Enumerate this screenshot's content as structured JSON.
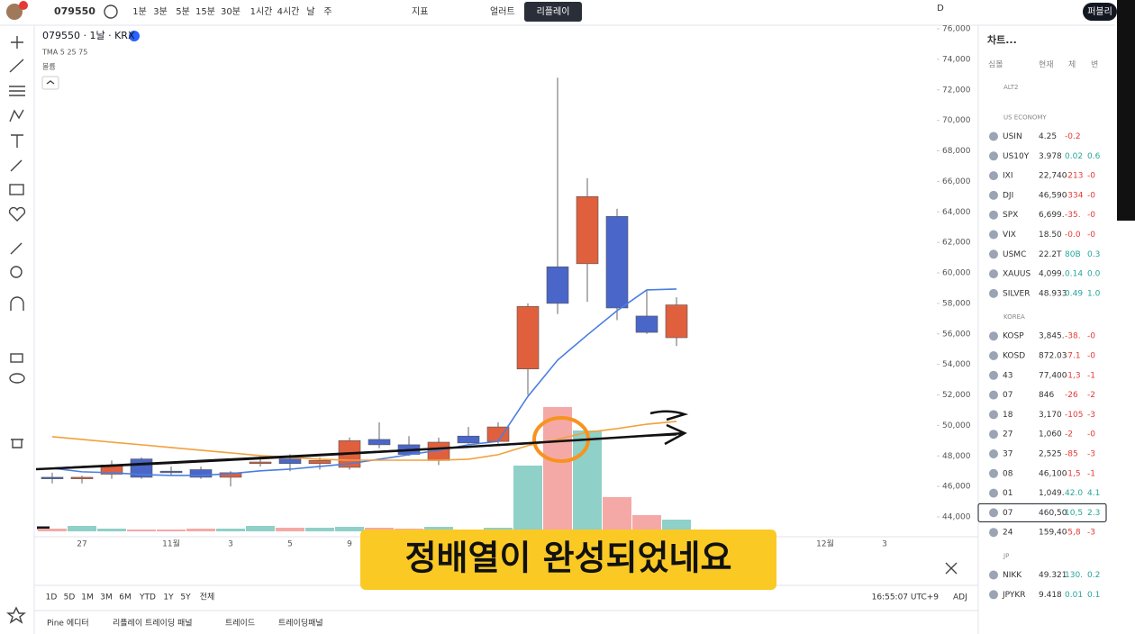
{
  "toolbar": {
    "symbol": "079550",
    "intervals": [
      "1분",
      "3분",
      "5분",
      "15분",
      "30분",
      "1시간",
      "4시간",
      "날",
      "주"
    ],
    "indicators": "지표",
    "alerts": "얼러트",
    "replay": "리플레이",
    "period": "D",
    "publish": "퍼블리"
  },
  "chart_data": {
    "type": "candlestick",
    "title": "079550 · 1날 · KRX",
    "indicator": "TMA 5 25 75",
    "volume_label": "볼륨",
    "categories": [
      null,
      "27",
      null,
      null,
      "11월",
      null,
      "3",
      null,
      "5",
      null,
      "9",
      null,
      null,
      null,
      null,
      null,
      null,
      null,
      null,
      null,
      null,
      null,
      null,
      null,
      null,
      null,
      "12월",
      null,
      "3"
    ],
    "open": [
      46600,
      46500,
      46800,
      47800,
      47000,
      47100,
      46600,
      47500,
      47800,
      47500,
      47250,
      49080,
      48730,
      47700,
      49300,
      48950,
      53700,
      60400,
      60600,
      63700,
      57170,
      55750,
      null,
      null,
      null,
      null,
      null,
      null,
      null
    ],
    "high": [
      46900,
      46700,
      47700,
      47900,
      47300,
      47300,
      47000,
      48000,
      48100,
      47900,
      49200,
      50200,
      49300,
      49200,
      49900,
      50200,
      58000,
      72800,
      66200,
      64200,
      58900,
      58400,
      null,
      null,
      null,
      null,
      null,
      null,
      null
    ],
    "low": [
      46200,
      46200,
      46500,
      46500,
      46700,
      46500,
      46000,
      47300,
      47000,
      47100,
      47100,
      48500,
      48000,
      47400,
      48800,
      48800,
      52000,
      57300,
      58100,
      56900,
      56000,
      55200,
      null,
      null,
      null,
      null,
      null,
      null,
      null
    ],
    "close": [
      46500,
      46600,
      47400,
      46600,
      46900,
      46600,
      46900,
      47600,
      47500,
      47700,
      49000,
      48730,
      48100,
      48900,
      48850,
      49900,
      57800,
      58000,
      65000,
      57700,
      56100,
      57900,
      null,
      null,
      null,
      null,
      null,
      null,
      null
    ],
    "volume": [
      30,
      60,
      30,
      20,
      20,
      30,
      30,
      60,
      40,
      40,
      50,
      40,
      30,
      50,
      20,
      40,
      730,
      1380,
      1120,
      380,
      180,
      130,
      null,
      null,
      null,
      null,
      null,
      null,
      null
    ],
    "volume_lim": [
      0,
      1500
    ],
    "up_color": "#e0603e",
    "down_color": "#4a66c8",
    "volume_up_color": "#8fd0c8",
    "volume_down_color": "#f5a9a6",
    "ma": [
      {
        "color": "#4a7ee0",
        "values": [
          47190,
          46960,
          46900,
          46780,
          46720,
          46720,
          46840,
          47020,
          47130,
          47310,
          47490,
          47780,
          48080,
          48370,
          48730,
          48960,
          51900,
          54280,
          55930,
          57520,
          58880,
          58940,
          null,
          null,
          null,
          null,
          null,
          null,
          null
        ]
      },
      {
        "color": "#f2a03a",
        "values": [
          49260,
          49080,
          48900,
          48730,
          48550,
          48370,
          48200,
          48020,
          47900,
          47780,
          47720,
          47720,
          47720,
          47720,
          47780,
          48080,
          48670,
          49080,
          49550,
          49790,
          50080,
          50260,
          null,
          null,
          null,
          null,
          null,
          null,
          null
        ]
      },
      {
        "color": "#111111",
        "values": [
          47190,
          47300,
          47400,
          47500,
          47600,
          47700,
          47800,
          47900,
          48000,
          48100,
          48200,
          48300,
          48400,
          48500,
          48600,
          48700,
          48800,
          48950,
          49100,
          49200,
          49300,
          49380,
          null,
          null,
          null,
          null,
          null,
          null,
          null
        ]
      }
    ],
    "ylim": [
      44000,
      76000
    ],
    "yticks": [
      {
        "value": 44000,
        "label": "44,000"
      },
      {
        "value": 46000,
        "label": "46,000"
      },
      {
        "value": 48000,
        "label": "48,000"
      },
      {
        "value": 50000,
        "label": "50,000"
      },
      {
        "value": 52000,
        "label": "52,000"
      },
      {
        "value": 54000,
        "label": "54,000"
      },
      {
        "value": 56000,
        "label": "56,000"
      },
      {
        "value": 58000,
        "label": "58,000"
      },
      {
        "value": 60000,
        "label": "60,000"
      },
      {
        "value": 62000,
        "label": "62,000"
      },
      {
        "value": 64000,
        "label": "64,000"
      },
      {
        "value": 66000,
        "label": "66,000"
      },
      {
        "value": 68000,
        "label": "68,000"
      },
      {
        "value": 70000,
        "label": "70,000"
      },
      {
        "value": 72000,
        "label": "72,000"
      },
      {
        "value": 74000,
        "label": "74,000"
      },
      {
        "value": 76000,
        "label": "76,000"
      }
    ],
    "grid": false
  },
  "caption": "정배열이 완성되었네요",
  "timeframes": [
    "1D",
    "5D",
    "1M",
    "3M",
    "6M",
    "YTD",
    "1Y",
    "5Y",
    "전체"
  ],
  "clock": "16:55:07 UTC+9",
  "adjust": "ADJ",
  "bottom_tabs": [
    "Pine 에디터",
    "리플레이 트레이딩 패널",
    "트레이드",
    "트레이딩패널"
  ],
  "watchlist": {
    "title": "차트...",
    "columns": [
      "심볼",
      "현재",
      "체",
      "변"
    ],
    "sections": [
      {
        "title": "ALT2",
        "rows": []
      },
      {
        "title": "US ECONOMY",
        "rows": [
          {
            "symbol": "USIN",
            "price": "4.25",
            "change": "-0.2",
            "pct": ""
          },
          {
            "symbol": "US10Y",
            "price": "3.978",
            "change": "0.02",
            "pct": "0.6"
          },
          {
            "symbol": "IXI",
            "price": "22,740",
            "change": "-213",
            "pct": "-0"
          },
          {
            "symbol": "DJI",
            "price": "46,590",
            "change": "-334",
            "pct": "-0"
          },
          {
            "symbol": "SPX",
            "price": "6,699.",
            "change": "-35.",
            "pct": "-0"
          },
          {
            "symbol": "VIX",
            "price": "18.50",
            "change": "-0.0",
            "pct": "-0"
          },
          {
            "symbol": "USMC",
            "price": "22.2T",
            "change": "80B",
            "pct": "0.3"
          },
          {
            "symbol": "XAUUS",
            "price": "4,099.",
            "change": "0.14",
            "pct": "0.0"
          },
          {
            "symbol": "SILVER",
            "price": "48.933",
            "change": "0.49",
            "pct": "1.0"
          }
        ]
      },
      {
        "title": "KOREA",
        "rows": [
          {
            "symbol": "KOSP",
            "price": "3,845.",
            "change": "-38.",
            "pct": "-0"
          },
          {
            "symbol": "KOSD",
            "price": "872.03",
            "change": "-7.1",
            "pct": "-0"
          },
          {
            "symbol": "43",
            "price": "77,400",
            "change": "-1,3",
            "pct": "-1"
          },
          {
            "symbol": "07",
            "price": "846",
            "change": "-26",
            "pct": "-2"
          },
          {
            "symbol": "18",
            "price": "3,170",
            "change": "-105",
            "pct": "-3"
          },
          {
            "symbol": "27",
            "price": "1,060",
            "change": "-2",
            "pct": "-0"
          },
          {
            "symbol": "37",
            "price": "2,525",
            "change": "-85",
            "pct": "-3"
          },
          {
            "symbol": "08",
            "price": "46,100",
            "change": "-1,5",
            "pct": "-1"
          },
          {
            "symbol": "01",
            "price": "1,049.",
            "change": "42.0",
            "pct": "4.1"
          },
          {
            "symbol": "07",
            "price": "460,50",
            "change": "10,5",
            "pct": "2.3",
            "selected": true
          },
          {
            "symbol": "24",
            "price": "159,40",
            "change": "-5,8",
            "pct": "-3"
          }
        ]
      },
      {
        "title": "JP",
        "rows": [
          {
            "symbol": "NIKK",
            "price": "49.321",
            "change": "130.",
            "pct": "0.2"
          },
          {
            "symbol": "JPYKR",
            "price": "9.418",
            "change": "0.01",
            "pct": "0.1"
          }
        ]
      }
    ]
  }
}
